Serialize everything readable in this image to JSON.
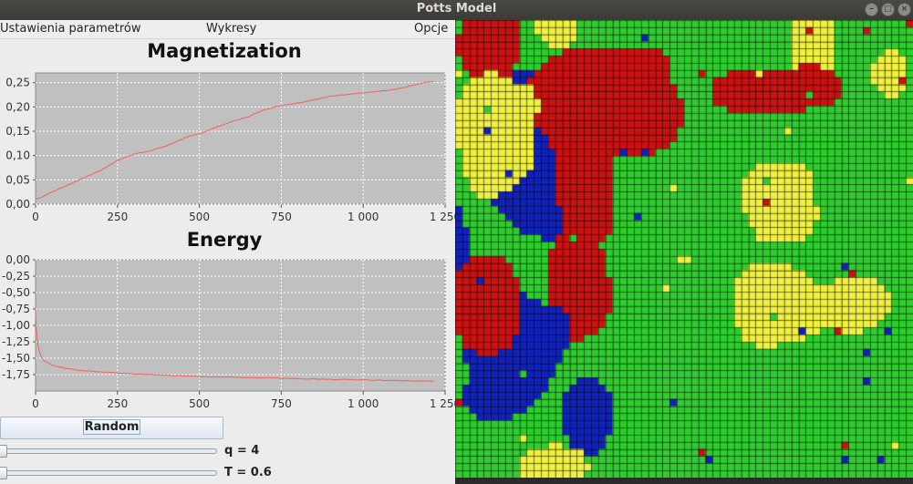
{
  "window": {
    "title": "Potts Model"
  },
  "menubar": {
    "items": [
      "Ustawienia parametrów",
      "Wykresy",
      "Opcje"
    ]
  },
  "controls": {
    "random_label": "Random",
    "q_label": "q = 4",
    "t_label": "T = 0.6",
    "q_value": 4,
    "t_value": 0.6
  },
  "lattice": {
    "size": 64,
    "colors": {
      "s0": "#2ecc2e",
      "s1": "#cc1111",
      "s2": "#1122bb",
      "s3": "#f0f040"
    },
    "regions": [
      [
        3,
        0.78,
        0.05,
        0.05,
        0.14
      ],
      [
        3,
        0.22,
        0.01,
        0.05,
        0.05
      ],
      [
        3,
        0.5,
        0.52,
        0.02,
        0.01
      ],
      [
        2,
        0.13,
        0.2,
        0.11,
        0.11
      ],
      [
        2,
        0.18,
        0.38,
        0.09,
        0.1
      ],
      [
        2,
        0.0,
        0.5,
        0.03,
        0.09
      ],
      [
        1,
        0.08,
        0.06,
        0.07,
        0.1
      ],
      [
        1,
        0.32,
        0.18,
        0.19,
        0.12
      ],
      [
        1,
        0.29,
        0.37,
        0.07,
        0.12
      ],
      [
        1,
        0.27,
        0.58,
        0.08,
        0.11
      ],
      [
        1,
        0.7,
        0.15,
        0.15,
        0.05
      ],
      [
        1,
        0.52,
        0.13,
        0.0,
        0.01
      ],
      [
        3,
        0.09,
        0.24,
        0.1,
        0.13
      ],
      [
        2,
        0.13,
        0.71,
        0.11,
        0.14
      ],
      [
        2,
        0.29,
        0.87,
        0.06,
        0.08
      ],
      [
        2,
        0.06,
        0.82,
        0.05,
        0.05
      ],
      [
        3,
        0.71,
        0.62,
        0.1,
        0.09
      ],
      [
        3,
        0.88,
        0.62,
        0.07,
        0.07
      ],
      [
        3,
        0.71,
        0.4,
        0.08,
        0.09
      ],
      [
        1,
        0.06,
        0.62,
        0.09,
        0.1
      ],
      [
        3,
        0.21,
        0.97,
        0.07,
        0.05
      ],
      [
        3,
        0.95,
        0.12,
        0.04,
        0.05
      ]
    ]
  },
  "chart_data": [
    {
      "type": "line",
      "title": "Magnetization",
      "xlim": [
        0,
        1250
      ],
      "ylim": [
        0,
        0.27
      ],
      "xticks": [
        0,
        250,
        500,
        750,
        1000,
        1250
      ],
      "xtick_labels": [
        "0",
        "250",
        "500",
        "750",
        "1 000",
        "1 250"
      ],
      "yticks": [
        0,
        0.05,
        0.1,
        0.15,
        0.2,
        0.25
      ],
      "ytick_labels": [
        "0,00",
        "0,05",
        "0,10",
        "0,15",
        "0,20",
        "0,25"
      ],
      "grid": true,
      "color": "#f06060",
      "series": [
        {
          "x": [
            0,
            20,
            50,
            100,
            150,
            200,
            250,
            300,
            350,
            400,
            450,
            500,
            550,
            600,
            650,
            700,
            750,
            800,
            850,
            900,
            950,
            1000,
            1050,
            1100,
            1150,
            1200,
            1215
          ],
          "values": [
            0.01,
            0.015,
            0.025,
            0.04,
            0.055,
            0.07,
            0.09,
            0.103,
            0.11,
            0.12,
            0.135,
            0.145,
            0.158,
            0.17,
            0.18,
            0.195,
            0.203,
            0.208,
            0.215,
            0.222,
            0.226,
            0.229,
            0.232,
            0.236,
            0.244,
            0.252,
            0.252
          ]
        }
      ]
    },
    {
      "type": "line",
      "title": "Energy",
      "xlim": [
        0,
        1250
      ],
      "ylim": [
        -2,
        0
      ],
      "xticks": [
        0,
        250,
        500,
        750,
        1000,
        1250
      ],
      "xtick_labels": [
        "0",
        "250",
        "500",
        "750",
        "1 000",
        "1 250"
      ],
      "yticks": [
        0,
        -0.25,
        -0.5,
        -0.75,
        -1.0,
        -1.25,
        -1.5,
        -1.75
      ],
      "ytick_labels": [
        "0,00",
        "-0,25",
        "-0,50",
        "-0,75",
        "-1,00",
        "-1,25",
        "-1,50",
        "-1,75"
      ],
      "grid": true,
      "color": "#f06060",
      "series": [
        {
          "x": [
            0,
            3,
            8,
            15,
            25,
            40,
            60,
            100,
            150,
            200,
            300,
            400,
            500,
            600,
            700,
            800,
            900,
            1000,
            1100,
            1200,
            1215
          ],
          "values": [
            -0.8,
            -1.1,
            -1.32,
            -1.45,
            -1.53,
            -1.58,
            -1.62,
            -1.66,
            -1.69,
            -1.71,
            -1.74,
            -1.76,
            -1.78,
            -1.79,
            -1.8,
            -1.81,
            -1.82,
            -1.83,
            -1.84,
            -1.85,
            -1.85
          ]
        }
      ]
    }
  ]
}
